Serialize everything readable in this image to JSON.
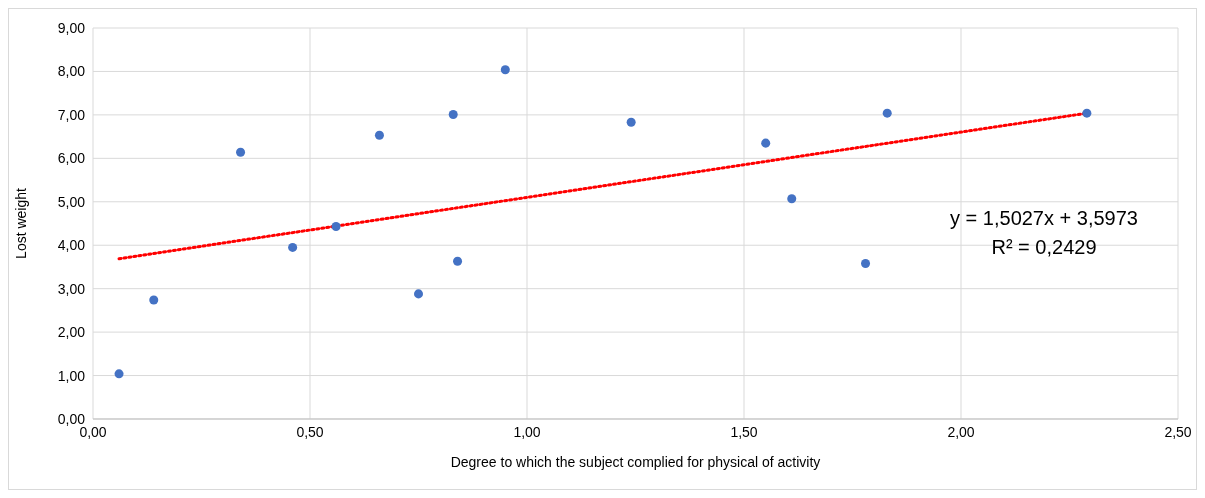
{
  "chart_data": {
    "type": "scatter",
    "xlabel": "Degree to which the subject complied for physical of activity",
    "ylabel": "Lost weight",
    "series": [
      {
        "color": "#4472c4",
        "marker": "circle",
        "x": [
          0.06,
          0.14,
          0.34,
          0.46,
          0.56,
          0.66,
          0.75,
          0.83,
          0.84,
          0.95,
          1.24,
          1.55,
          1.61,
          1.78,
          1.83,
          2.29
        ],
        "values": [
          1.04,
          2.74,
          6.14,
          3.95,
          4.43,
          6.53,
          2.88,
          7.01,
          3.63,
          8.04,
          6.83,
          6.35,
          5.07,
          3.58,
          7.04,
          7.04
        ]
      },
      {
        "type": "line",
        "color": "#ff0000",
        "line_style": "dotted",
        "x": [
          0.06,
          2.29
        ],
        "values": [
          3.69,
          7.04
        ]
      }
    ],
    "annotations": [
      "y = 1,5027x + 3,5973",
      "R² = 0,2429"
    ],
    "xlim": [
      0,
      2.5
    ],
    "xticks": [
      {
        "value": 0,
        "label": "0,00"
      },
      {
        "value": 0.5,
        "label": "0,50"
      },
      {
        "value": 1,
        "label": "1,00"
      },
      {
        "value": 1.5,
        "label": "1,50"
      },
      {
        "value": 2,
        "label": "2,00"
      },
      {
        "value": 2.5,
        "label": "2,50"
      }
    ],
    "ylim": [
      0,
      9
    ],
    "yticks": [
      {
        "value": 0,
        "label": "0,00"
      },
      {
        "value": 1,
        "label": "1,00"
      },
      {
        "value": 2,
        "label": "2,00"
      },
      {
        "value": 3,
        "label": "3,00"
      },
      {
        "value": 4,
        "label": "4,00"
      },
      {
        "value": 5,
        "label": "5,00"
      },
      {
        "value": 6,
        "label": "6,00"
      },
      {
        "value": 7,
        "label": "7,00"
      },
      {
        "value": 8,
        "label": "8,00"
      },
      {
        "value": 9,
        "label": "9,00"
      }
    ],
    "grid": true
  }
}
